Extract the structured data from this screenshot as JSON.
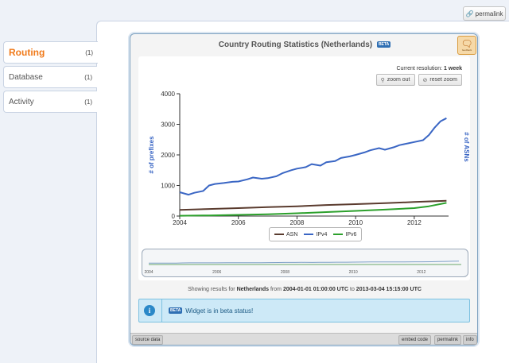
{
  "top": {
    "permalink_label": "permalink"
  },
  "sidebar": {
    "items": [
      {
        "label": "Routing",
        "count": "(1)",
        "active": true
      },
      {
        "label": "Database",
        "count": "(1)",
        "active": false
      },
      {
        "label": "Activity",
        "count": "(1)",
        "active": false
      }
    ]
  },
  "widget": {
    "title": "Country Routing Statistics (Netherlands)",
    "title_badge": "BETA",
    "feedback_label": "feedback",
    "resolution_label": "Current resolution:",
    "resolution_value": "1 week",
    "zoom_out_label": "zoom out",
    "reset_zoom_label": "reset zoom",
    "results_prefix": "Showing results for",
    "results_country": "Netherlands",
    "results_from_word": "from",
    "results_from": "2004-01-01 01:00:00 UTC",
    "results_to_word": "to",
    "results_to": "2013-03-04 15:15:00 UTC",
    "info_badge": "BETA",
    "info_message": "Widget is in beta status!",
    "footer": {
      "source_data": "source data",
      "embed_code": "embed code",
      "permalink": "permalink",
      "info": "info"
    }
  },
  "colors": {
    "accent": "#f07a1a",
    "asn": "#5a3b2e",
    "ipv4": "#3a66c4",
    "ipv6": "#2ca02c"
  },
  "chart_data": {
    "type": "line",
    "ylabel": "# of prefixes",
    "y2label": "# of ASNs",
    "ylim": [
      0,
      4000
    ],
    "yticks": [
      "0",
      "1000",
      "2000",
      "3000",
      "4000"
    ],
    "xlim": [
      2004,
      2013.17
    ],
    "xticks": [
      "2004",
      "2006",
      "2008",
      "2010",
      "2012"
    ],
    "legend": [
      "ASN",
      "IPv4",
      "IPv6"
    ],
    "legend_position": "bottom-center",
    "series": [
      {
        "name": "IPv4",
        "x": [
          2004.0,
          2004.3,
          2004.5,
          2004.8,
          2005.0,
          2005.2,
          2005.5,
          2005.8,
          2006.0,
          2006.3,
          2006.5,
          2006.8,
          2007.0,
          2007.3,
          2007.5,
          2007.8,
          2008.0,
          2008.3,
          2008.5,
          2008.8,
          2009.0,
          2009.3,
          2009.5,
          2009.8,
          2010.0,
          2010.3,
          2010.5,
          2010.8,
          2011.0,
          2011.3,
          2011.5,
          2011.8,
          2012.0,
          2012.3,
          2012.5,
          2012.7,
          2012.9,
          2013.1
        ],
        "values": [
          780,
          700,
          760,
          820,
          1000,
          1050,
          1080,
          1120,
          1130,
          1200,
          1260,
          1220,
          1240,
          1300,
          1400,
          1500,
          1550,
          1600,
          1700,
          1650,
          1760,
          1800,
          1900,
          1950,
          2000,
          2080,
          2150,
          2220,
          2170,
          2250,
          2320,
          2380,
          2420,
          2480,
          2650,
          2900,
          3100,
          3200
        ]
      },
      {
        "name": "ASN",
        "x": [
          2004.0,
          2005.0,
          2006.0,
          2007.0,
          2008.0,
          2009.0,
          2010.0,
          2011.0,
          2012.0,
          2013.1
        ],
        "values": [
          200,
          230,
          260,
          290,
          320,
          360,
          390,
          420,
          460,
          500
        ]
      },
      {
        "name": "IPv6",
        "x": [
          2004.0,
          2005.0,
          2006.0,
          2007.0,
          2008.0,
          2009.0,
          2010.0,
          2011.0,
          2012.0,
          2012.5,
          2013.1
        ],
        "values": [
          10,
          20,
          40,
          60,
          90,
          130,
          170,
          210,
          260,
          320,
          430
        ]
      }
    ]
  }
}
